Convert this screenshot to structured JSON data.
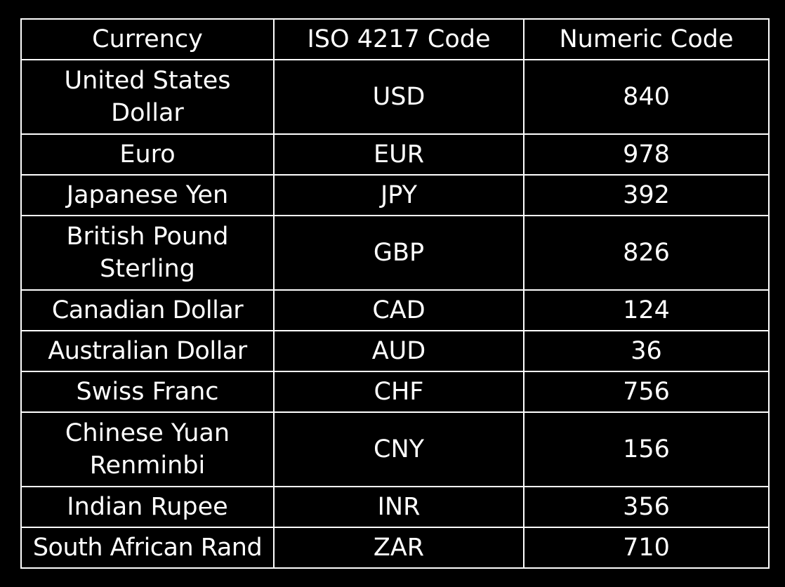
{
  "table": {
    "headers": [
      "Currency",
      "ISO 4217 Code",
      "Numeric Code"
    ],
    "rows": [
      [
        "United States Dollar",
        "USD",
        "840"
      ],
      [
        "Euro",
        "EUR",
        "978"
      ],
      [
        "Japanese Yen",
        "JPY",
        "392"
      ],
      [
        "British Pound Sterling",
        "GBP",
        "826"
      ],
      [
        "Canadian Dollar",
        "CAD",
        "124"
      ],
      [
        "Australian Dollar",
        "AUD",
        "36"
      ],
      [
        "Swiss Franc",
        "CHF",
        "756"
      ],
      [
        "Chinese Yuan Renminbi",
        "CNY",
        "156"
      ],
      [
        "Indian Rupee",
        "INR",
        "356"
      ],
      [
        "South African Rand",
        "ZAR",
        "710"
      ]
    ]
  },
  "colors": {
    "background": "#000000",
    "text": "#ffffff",
    "border": "#ffffff"
  }
}
